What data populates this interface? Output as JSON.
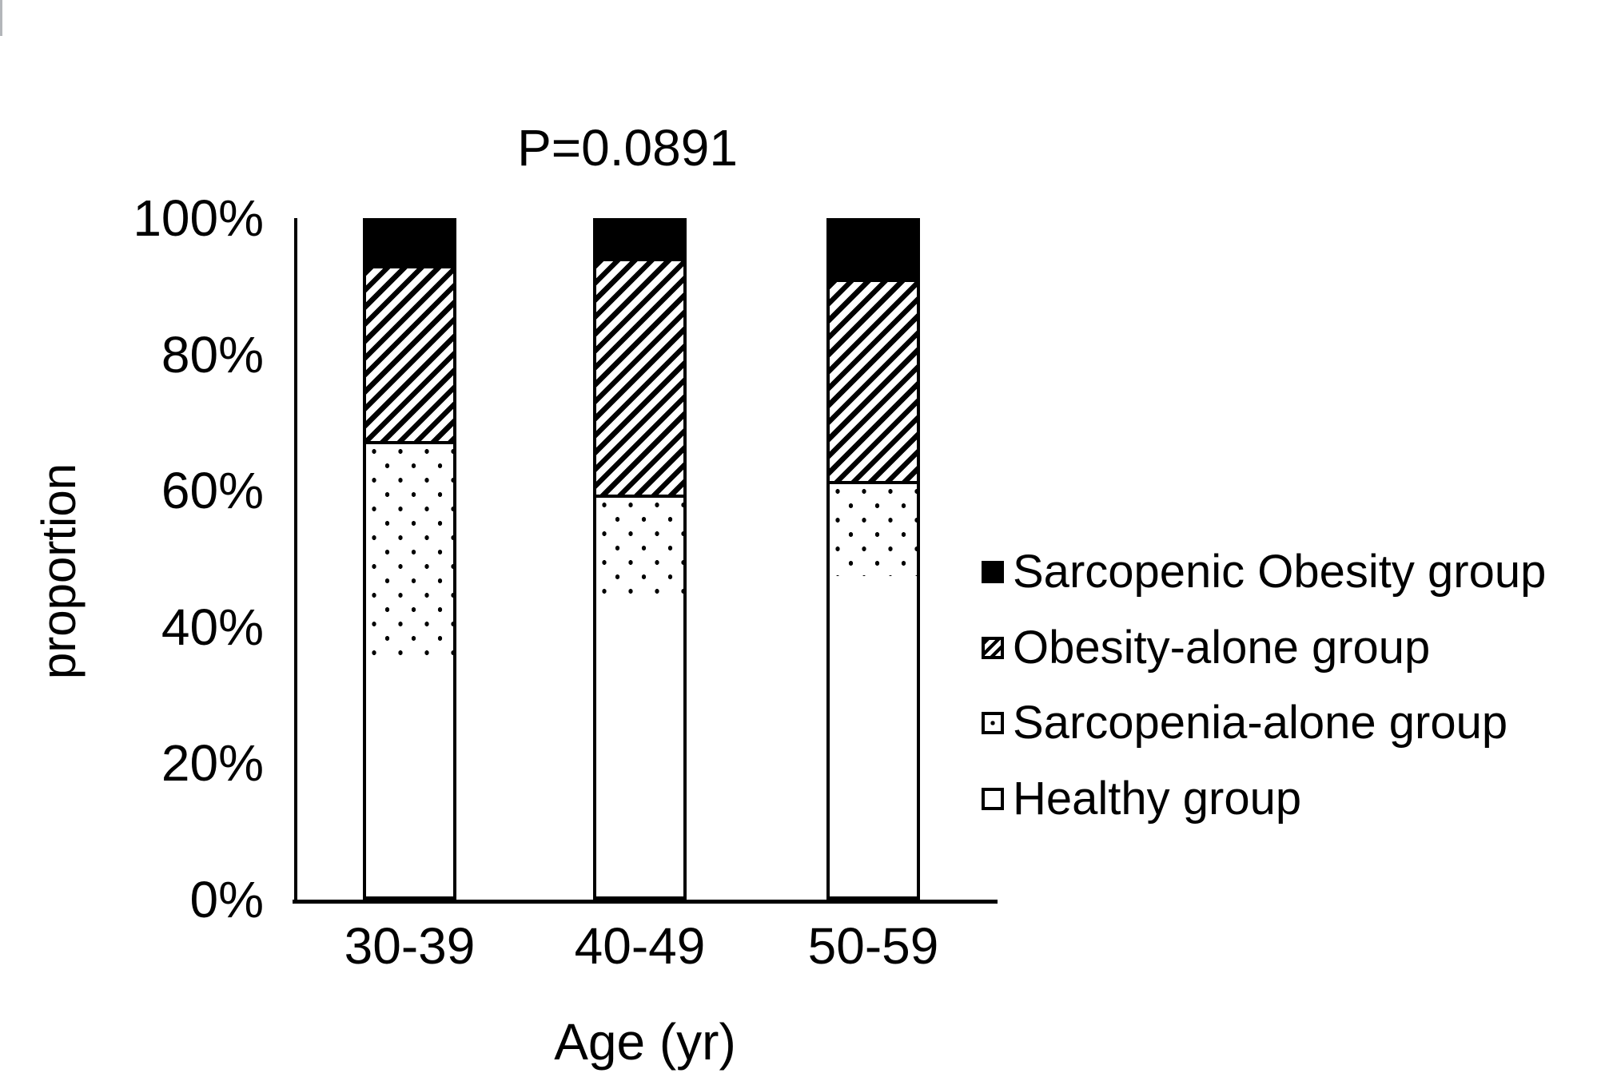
{
  "chart_data": {
    "type": "bar",
    "subtype": "stacked-100-percent",
    "title": "P=0.0891",
    "xlabel": "Age (yr)",
    "ylabel": "proportion",
    "categories": [
      "30-39",
      "40-49",
      "50-59"
    ],
    "series": [
      {
        "name": "Healthy group",
        "pattern": "white",
        "values": [
          35.5,
          44.0,
          47.5
        ]
      },
      {
        "name": "Sarcopenia-alone group",
        "pattern": "dots",
        "values": [
          32.0,
          15.5,
          14.0
        ]
      },
      {
        "name": "Obesity-alone group",
        "pattern": "stripes",
        "values": [
          26.0,
          35.0,
          30.0
        ]
      },
      {
        "name": "Sarcopenic Obesity group",
        "pattern": "black",
        "values": [
          6.5,
          5.5,
          8.5
        ]
      }
    ],
    "yticks": [
      "100%",
      "80%",
      "60%",
      "40%",
      "20%",
      "0%"
    ],
    "ylim": [
      0,
      100
    ],
    "grid": false,
    "legend_position": "right-middle"
  },
  "legend": {
    "items": [
      {
        "label": "Sarcopenic Obesity group",
        "marker": "black"
      },
      {
        "label": "Obesity-alone group",
        "marker": "stripes"
      },
      {
        "label": "Sarcopenia-alone group",
        "marker": "dots"
      },
      {
        "label": "Healthy group",
        "marker": "white"
      }
    ]
  },
  "colors": {
    "foreground": "#000000",
    "background": "#ffffff"
  }
}
